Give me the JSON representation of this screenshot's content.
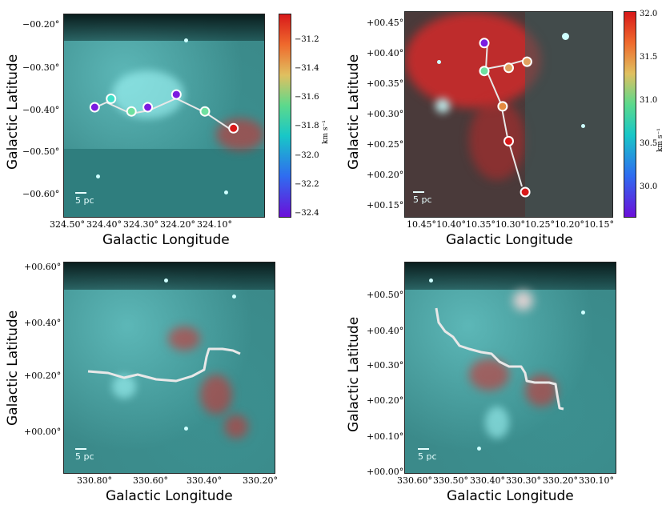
{
  "panels": [
    {
      "id": "top-left",
      "xlabel": "Galactic Longitude",
      "ylabel": "Galactic Latitude",
      "xticks": [
        "324.50°",
        "324.40°",
        "324.30°",
        "324.20°",
        "324.10°"
      ],
      "yticks": [
        "−00.20°",
        "−00.30°",
        "−00.40°",
        "−00.50°",
        "−00.60°"
      ],
      "scale_label": "5 pc",
      "colorbar": {
        "ticks": [
          "−31.2",
          "−31.4",
          "−31.6",
          "−31.8",
          "−32.0",
          "−32.2",
          "−32.4"
        ],
        "unit": "km s⁻¹"
      },
      "points": [
        {
          "l": 324.45,
          "b": -0.4,
          "color": "#7b1be0"
        },
        {
          "l": 324.41,
          "b": -0.38,
          "color": "#40e0c8"
        },
        {
          "l": 324.36,
          "b": -0.41,
          "color": "#6fe0a0"
        },
        {
          "l": 324.32,
          "b": -0.4,
          "color": "#7b1be0"
        },
        {
          "l": 324.25,
          "b": -0.37,
          "color": "#7b1be0"
        },
        {
          "l": 324.18,
          "b": -0.41,
          "color": "#6fe0a0"
        },
        {
          "l": 324.11,
          "b": -0.45,
          "color": "#d8191a"
        }
      ]
    },
    {
      "id": "top-right",
      "xlabel": "Galactic Longitude",
      "ylabel": "Galactic Latitude",
      "xticks": [
        "10.45°",
        "10.40°",
        "10.35°",
        "10.30°",
        "10.25°",
        "10.20°",
        "10.15°"
      ],
      "yticks": [
        "+00.45°",
        "+00.40°",
        "+00.35°",
        "+00.30°",
        "+00.25°",
        "+00.20°",
        "+00.15°"
      ],
      "scale_label": "5 pc",
      "colorbar": {
        "ticks": [
          "32.0",
          "31.5",
          "31.0",
          "30.5",
          "30.0"
        ],
        "unit": "km s⁻¹"
      },
      "points": [
        {
          "l": 10.345,
          "b": 0.42,
          "color": "#7b1be0"
        },
        {
          "l": 10.345,
          "b": 0.375,
          "color": "#6fe0a0"
        },
        {
          "l": 10.305,
          "b": 0.38,
          "color": "#e0a060"
        },
        {
          "l": 10.275,
          "b": 0.39,
          "color": "#e0a060"
        },
        {
          "l": 10.315,
          "b": 0.318,
          "color": "#e48a40"
        },
        {
          "l": 10.305,
          "b": 0.262,
          "color": "#d8191a"
        },
        {
          "l": 10.278,
          "b": 0.18,
          "color": "#d8191a"
        }
      ]
    },
    {
      "id": "bottom-left",
      "xlabel": "Galactic Longitude",
      "ylabel": "Galactic Latitude",
      "xticks": [
        "330.80°",
        "330.60°",
        "330.40°",
        "330.20°"
      ],
      "yticks": [
        "+00.60°",
        "+00.40°",
        "+00.20°",
        "+00.00°"
      ],
      "scale_label": "5 pc"
    },
    {
      "id": "bottom-right",
      "xlabel": "Galactic Longitude",
      "ylabel": "Galactic Latitude",
      "xticks": [
        "330.60°",
        "330.50°",
        "330.40°",
        "330.30°",
        "330.20°",
        "330.10°"
      ],
      "yticks": [
        "+00.50°",
        "+00.40°",
        "+00.30°",
        "+00.20°",
        "+00.10°",
        "+00.00°"
      ],
      "scale_label": "5 pc"
    }
  ]
}
